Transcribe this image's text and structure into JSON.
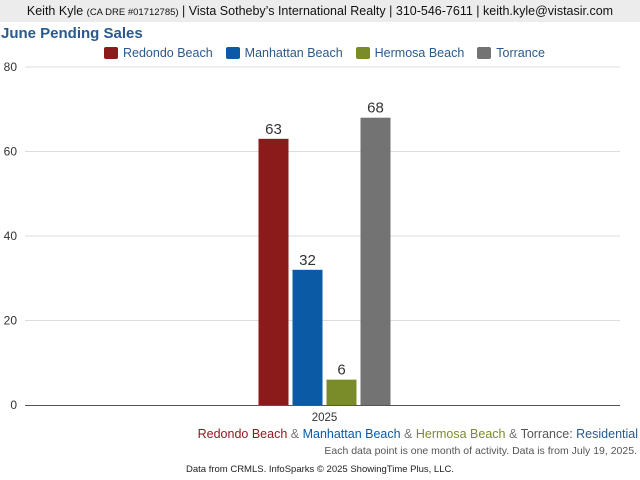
{
  "header": {
    "name": "Keith Kyle",
    "license": "(CA DRE #01712785)",
    "company": "Vista Sotheby’s International Realty",
    "phone": "310-546-7611",
    "email": "keith.kyle@vistasir.com",
    "separator": "|"
  },
  "chart_data": {
    "type": "bar",
    "title": "June Pending Sales",
    "categories": [
      "2025"
    ],
    "series": [
      {
        "name": "Redondo Beach",
        "values": [
          63
        ],
        "color": "#8b1a1a"
      },
      {
        "name": "Manhattan Beach",
        "values": [
          32
        ],
        "color": "#0a5aa5"
      },
      {
        "name": "Hermosa Beach",
        "values": [
          6
        ],
        "color": "#7a8c2a"
      },
      {
        "name": "Torrance",
        "values": [
          68
        ],
        "color": "#737373"
      }
    ],
    "yticks": [
      0,
      20,
      40,
      60,
      80
    ],
    "ylim": [
      0,
      80
    ],
    "grid": true,
    "legend_position": "top"
  },
  "footer": {
    "series_line": [
      {
        "text": "Redondo Beach",
        "color": "#8b1a1a"
      },
      {
        "text": " & ",
        "color": "#777777"
      },
      {
        "text": "Manhattan Beach",
        "color": "#0a5aa5"
      },
      {
        "text": " & ",
        "color": "#777777"
      },
      {
        "text": "Hermosa Beach",
        "color": "#7a8c2a"
      },
      {
        "text": " & ",
        "color": "#777777"
      },
      {
        "text": "Torrance",
        "color": "#555555"
      },
      {
        "text": ": ",
        "color": "#555555"
      },
      {
        "text": "Residential",
        "color": "#2a5a8c"
      }
    ],
    "note": "Each data point is one month of activity. Data is from July 19, 2025.",
    "source": "Data from CRMLS. InfoSparks © 2025 ShowingTime Plus, LLC."
  }
}
